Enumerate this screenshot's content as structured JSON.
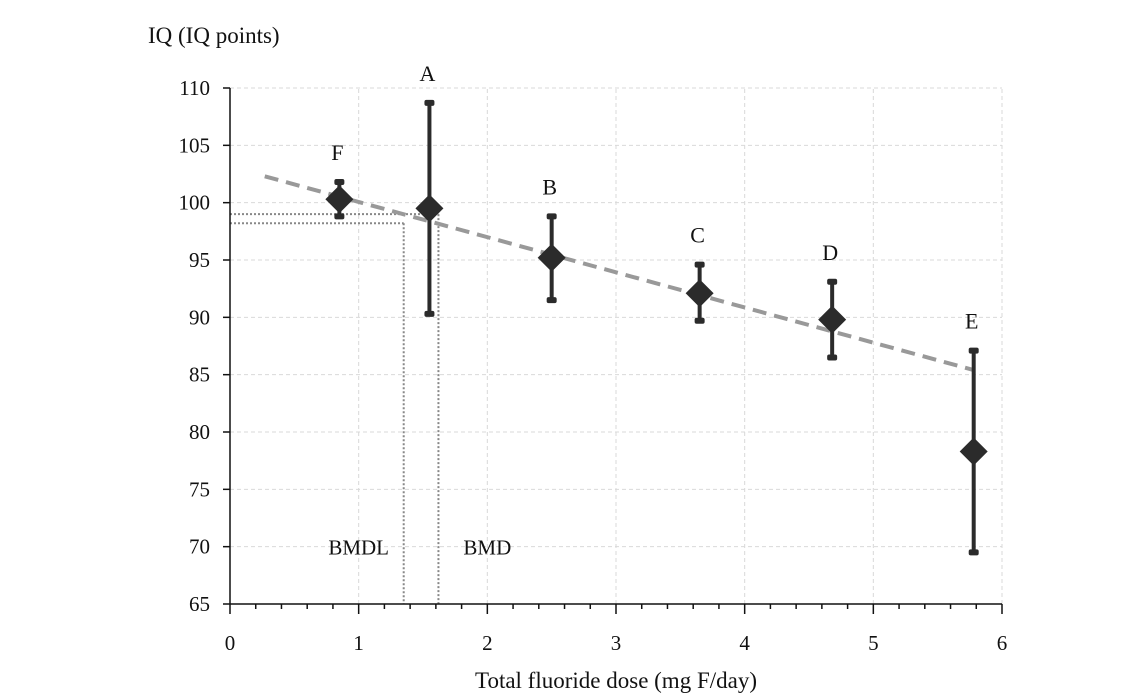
{
  "chart_data": {
    "type": "scatter",
    "title": "",
    "ylabel": "IQ (IQ points)",
    "xlabel": "Total fluoride dose (mg F/day)",
    "xlim": [
      0,
      6
    ],
    "ylim": [
      65,
      110
    ],
    "x_ticks": [
      "0",
      "1",
      "2",
      "3",
      "4",
      "5",
      "6"
    ],
    "y_ticks": [
      "65",
      "70",
      "75",
      "80",
      "85",
      "90",
      "95",
      "100",
      "105",
      "110"
    ],
    "x_tick_values": [
      0,
      1,
      2,
      3,
      4,
      5,
      6
    ],
    "y_tick_values": [
      65,
      70,
      75,
      80,
      85,
      90,
      95,
      100,
      105,
      110
    ],
    "grid": true,
    "points": [
      {
        "label": "F",
        "x": 0.85,
        "y": 100.3,
        "y_low": 98.8,
        "y_high": 101.8
      },
      {
        "label": "A",
        "x": 1.55,
        "y": 99.5,
        "y_low": 90.3,
        "y_high": 108.7
      },
      {
        "label": "B",
        "x": 2.5,
        "y": 95.2,
        "y_low": 91.5,
        "y_high": 98.8
      },
      {
        "label": "C",
        "x": 3.65,
        "y": 92.1,
        "y_low": 89.7,
        "y_high": 94.6
      },
      {
        "label": "D",
        "x": 4.68,
        "y": 89.8,
        "y_low": 86.5,
        "y_high": 93.1
      },
      {
        "label": "E",
        "x": 5.78,
        "y": 78.3,
        "y_low": 69.5,
        "y_high": 87.1
      }
    ],
    "trend_line": {
      "x": [
        0.27,
        5.78
      ],
      "y": [
        102.3,
        85.4
      ],
      "style": "dashed",
      "color": "#999999"
    },
    "reference_lines": [
      {
        "label": "BMDL",
        "x": 1.35,
        "y": 98.2
      },
      {
        "label": "BMD",
        "x": 1.62,
        "y": 99.0
      }
    ],
    "annotations": [
      {
        "text": "BMDL",
        "x": 1.0,
        "y": 70.0
      },
      {
        "text": "BMD",
        "x": 2.0,
        "y": 70.0
      }
    ],
    "colors": {
      "marker": "#2b2b2b",
      "trend": "#999999",
      "grid": "#d9d9d9",
      "reference": "#888888"
    }
  }
}
